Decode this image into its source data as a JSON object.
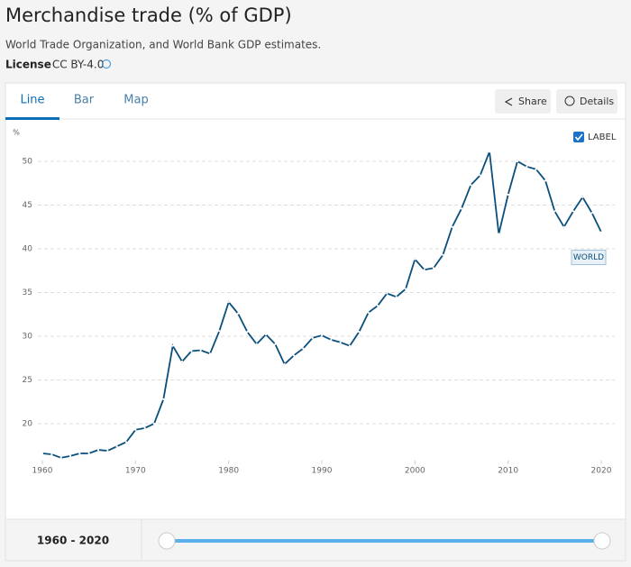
{
  "header": {
    "title": "Merchandise trade (% of GDP)",
    "source": "World Trade Organization, and World Bank GDP estimates.",
    "license_label": "License",
    "license_value": ": CC BY-4.0"
  },
  "tabs": [
    "Line",
    "Bar",
    "Map"
  ],
  "buttons": {
    "share": "Share",
    "details": "Details"
  },
  "label_toggle": "LABEL",
  "footer": {
    "range": "1960 - 2020"
  },
  "chart_data": {
    "type": "line",
    "y_label": "%",
    "x": [
      1960,
      1961,
      1962,
      1963,
      1964,
      1965,
      1966,
      1967,
      1968,
      1969,
      1970,
      1971,
      1972,
      1973,
      1974,
      1975,
      1976,
      1977,
      1978,
      1979,
      1980,
      1981,
      1982,
      1983,
      1984,
      1985,
      1986,
      1987,
      1988,
      1989,
      1990,
      1991,
      1992,
      1993,
      1994,
      1995,
      1996,
      1997,
      1998,
      1999,
      2000,
      2001,
      2002,
      2003,
      2004,
      2005,
      2006,
      2007,
      2008,
      2009,
      2010,
      2011,
      2012,
      2013,
      2014,
      2015,
      2016,
      2017,
      2018,
      2019,
      2020
    ],
    "series": [
      {
        "name": "WORLD",
        "color": "#0b4f7c",
        "values": [
          16.6,
          16.5,
          16.1,
          16.3,
          16.6,
          16.6,
          17.0,
          16.9,
          17.4,
          17.9,
          19.3,
          19.5,
          20.0,
          22.8,
          28.9,
          27.1,
          28.3,
          28.4,
          28.0,
          30.6,
          33.9,
          32.6,
          30.5,
          29.1,
          30.2,
          29.1,
          26.8,
          27.8,
          28.6,
          29.8,
          30.1,
          29.6,
          29.3,
          28.9,
          30.5,
          32.7,
          33.5,
          34.9,
          34.5,
          35.4,
          38.8,
          37.6,
          37.8,
          39.3,
          42.5,
          44.6,
          47.3,
          48.4,
          51.1,
          41.7,
          46.2,
          50.0,
          49.4,
          49.1,
          47.8,
          44.3,
          42.5,
          44.3,
          45.9,
          44.1,
          41.9
        ]
      }
    ],
    "xlim": [
      1960,
      2020
    ],
    "xticks": [
      1960,
      1970,
      1980,
      1990,
      2000,
      2010,
      2020
    ],
    "ylim": [
      16,
      52
    ],
    "yticks": [
      20,
      25,
      30,
      35,
      40,
      45,
      50
    ],
    "grid": true
  }
}
